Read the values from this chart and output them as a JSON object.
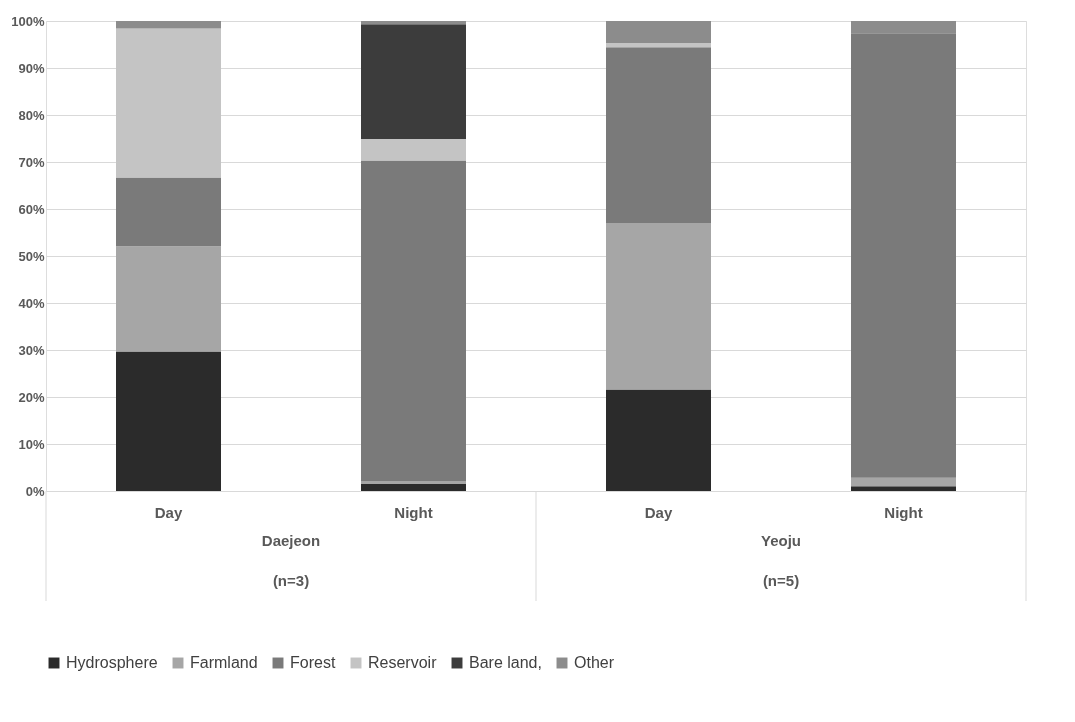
{
  "chart_data": {
    "type": "bar",
    "stacked": true,
    "categories": [
      "Day",
      "Night",
      "Day",
      "Night"
    ],
    "series": [
      {
        "name": "Hydrosphere",
        "color": "#2b2b2b",
        "values": [
          29.7,
          1.5,
          21.6,
          1.0
        ]
      },
      {
        "name": "Farmland",
        "color": "#a6a6a6",
        "values": [
          22.4,
          0.5,
          35.4,
          1.8
        ]
      },
      {
        "name": "Forest",
        "color": "#7a7a7a",
        "values": [
          14.6,
          68.3,
          37.4,
          94.6
        ]
      },
      {
        "name": "Reservoir",
        "color": "#c4c4c4",
        "values": [
          31.7,
          4.6,
          0.9,
          0
        ]
      },
      {
        "name": "Bare land,",
        "color": "#3c3c3c",
        "values": [
          0,
          24.4,
          0,
          0
        ]
      },
      {
        "name": "Other",
        "color": "#8c8c8c",
        "values": [
          1.6,
          0.7,
          4.7,
          2.6
        ]
      }
    ],
    "annotations": [
      "Daejeon",
      "(n=3)",
      "Yeoju",
      "(n=5)"
    ],
    "ylim": [
      0,
      100
    ],
    "yticks": [
      {
        "value": 0,
        "label": "0%"
      },
      {
        "value": 10,
        "label": "10%"
      },
      {
        "value": 20,
        "label": "20%"
      },
      {
        "value": 30,
        "label": "30%"
      },
      {
        "value": 40,
        "label": "40%"
      },
      {
        "value": 50,
        "label": "50%"
      },
      {
        "value": 60,
        "label": "60%"
      },
      {
        "value": 70,
        "label": "70%"
      },
      {
        "value": 80,
        "label": "80%"
      },
      {
        "value": 90,
        "label": "90%"
      },
      {
        "value": 100,
        "label": "100%"
      }
    ],
    "grid": "y",
    "legend": "bottom"
  }
}
